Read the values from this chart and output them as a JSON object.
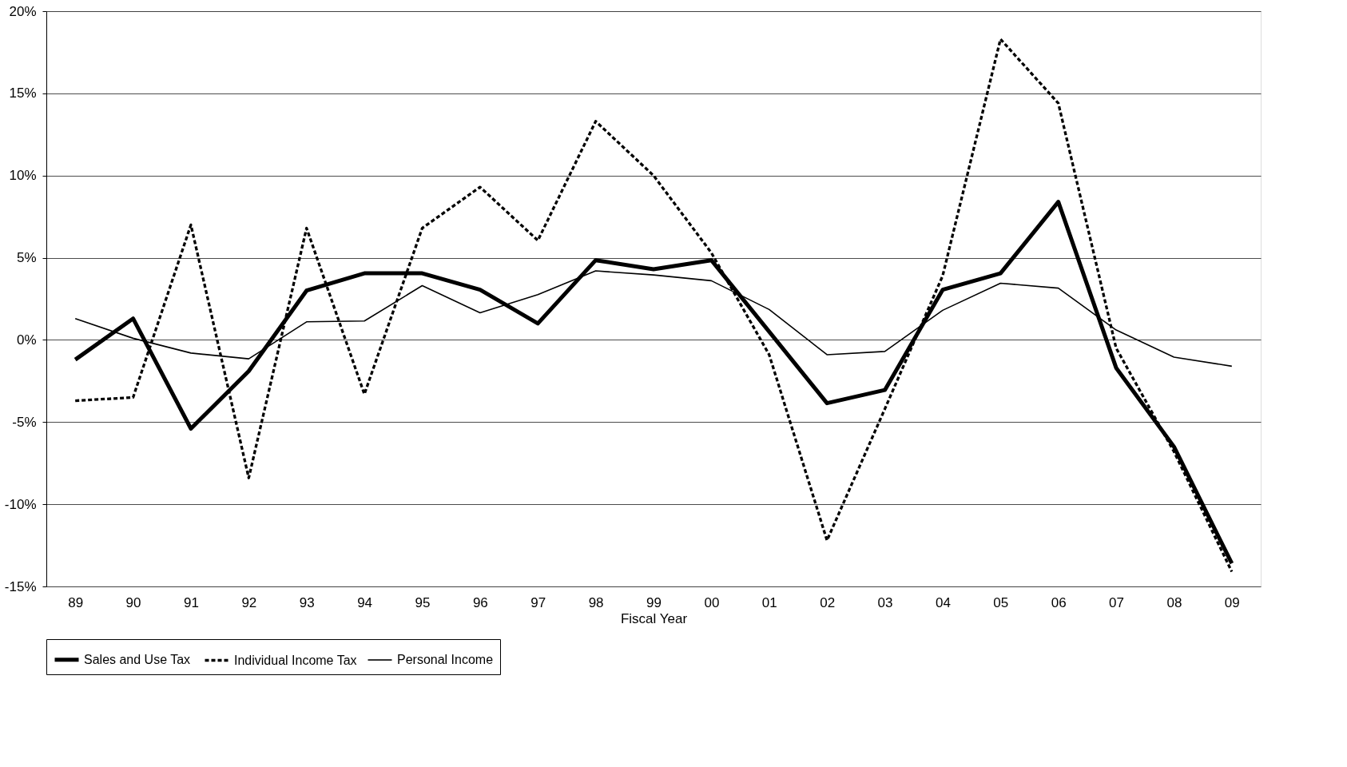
{
  "chart_data": {
    "type": "line",
    "xlabel": "Fiscal Year",
    "categories": [
      "89",
      "90",
      "91",
      "92",
      "93",
      "94",
      "95",
      "96",
      "97",
      "98",
      "99",
      "00",
      "01",
      "02",
      "03",
      "04",
      "05",
      "06",
      "07",
      "08",
      "09"
    ],
    "series": [
      {
        "name": "Sales and Use Tax",
        "color": "#000000",
        "line_style": "solid",
        "values": [
          -1.2,
          1.3,
          -5.4,
          -1.9,
          3.0,
          4.05,
          4.05,
          3.05,
          1.0,
          4.85,
          4.3,
          4.85,
          0.5,
          -3.85,
          -3.05,
          3.05,
          4.05,
          8.4,
          -1.7,
          -6.5,
          -13.6
        ]
      },
      {
        "name": "Individual Income Tax",
        "color": "#000000",
        "line_style": "dashed",
        "values": [
          -3.7,
          -3.5,
          7.0,
          -8.4,
          6.8,
          -3.3,
          6.8,
          9.3,
          6.05,
          13.3,
          10.0,
          5.3,
          -0.9,
          -12.2,
          -4.2,
          3.9,
          18.3,
          14.4,
          -0.5,
          -6.8,
          -14.1
        ]
      },
      {
        "name": "Personal Income",
        "color": "#000000",
        "line_style": "solid",
        "values": [
          1.3,
          0.1,
          -0.8,
          -1.15,
          1.1,
          1.15,
          3.3,
          1.65,
          2.75,
          4.2,
          3.95,
          3.6,
          1.85,
          -0.9,
          -0.7,
          1.8,
          3.45,
          3.15,
          0.6,
          -1.05,
          -1.6
        ]
      }
    ],
    "ylim": [
      -15,
      20
    ],
    "yticks": [
      {
        "value": -15,
        "label": "-15%"
      },
      {
        "value": -10,
        "label": "-10%"
      },
      {
        "value": -5,
        "label": "-5%"
      },
      {
        "value": 0,
        "label": "0%"
      },
      {
        "value": 5,
        "label": "5%"
      },
      {
        "value": 10,
        "label": "10%"
      },
      {
        "value": 15,
        "label": "15%"
      },
      {
        "value": 20,
        "label": "20%"
      }
    ],
    "grid": "y",
    "legend": "bottom",
    "marker": "none"
  }
}
